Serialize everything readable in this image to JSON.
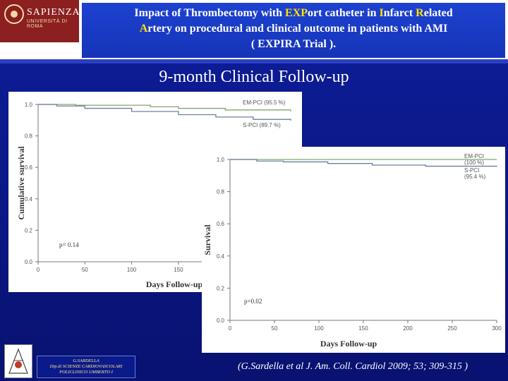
{
  "header": {
    "logo_name": "SAPIENZA",
    "logo_subtitle": "UNIVERSITÀ DI ROMA",
    "title": {
      "part1": "Impact of Thrombectomy with ",
      "exp": "EXP",
      "part2": "ort catheter in ",
      "i": "I",
      "part3": "nfarct ",
      "r": "R",
      "part4": "elated",
      "part5a": "",
      "a": "A",
      "part5": "rtery on procedural and clinical outcome in patients with AMI",
      "part6": "( EXPIRA Trial )."
    }
  },
  "subtitle": "9-month Clinical Follow-up",
  "footer": {
    "line1": "G.SARDELLA",
    "line2": "Dip.di SCIENZE CARDIOVASCOLARI",
    "line3": "POLICLINICO UMBERTO I"
  },
  "citation": "(G.Sardella et al J. Am. Coll. Cardiol 2009; 53; 309-315 )",
  "colors": {
    "em_pci": "#7fa86a",
    "s_pci": "#6e7fa0",
    "highlight": "#ffe100"
  },
  "chart_data": [
    {
      "type": "line",
      "xlabel": "Days Follow-up",
      "ylabel": "Cumulative survival",
      "x_ticks": [
        "0",
        "50",
        "100",
        "150"
      ],
      "y_ticks": [
        "0.0",
        "0.2",
        "0.4",
        "0.6",
        "0.8",
        "1.0"
      ],
      "xlim": [
        0,
        270
      ],
      "ylim": [
        0,
        1.0
      ],
      "annotation": "p= 0.14",
      "series": [
        {
          "name": "EM-PCI (95.5 %)",
          "x": [
            0,
            40,
            120,
            150,
            200,
            270
          ],
          "y": [
            1.0,
            0.995,
            0.985,
            0.975,
            0.965,
            0.955
          ]
        },
        {
          "name": "S-PCI (89.7 %)",
          "x": [
            0,
            20,
            50,
            100,
            150,
            190,
            230,
            270
          ],
          "y": [
            1.0,
            0.99,
            0.975,
            0.955,
            0.935,
            0.92,
            0.905,
            0.897
          ]
        }
      ]
    },
    {
      "type": "line",
      "xlabel": "Days Follow-up",
      "ylabel": "Survival",
      "x_ticks": [
        "0",
        "50",
        "100",
        "150",
        "200",
        "250",
        "300"
      ],
      "y_ticks": [
        "0.0",
        "0.2",
        "0.4",
        "0.6",
        "0.8",
        "1.0"
      ],
      "xlim": [
        0,
        300
      ],
      "ylim": [
        0,
        1.0
      ],
      "annotation": "p=0.02",
      "series": [
        {
          "name": "EM-PCI",
          "value_label": "(100 %)",
          "x": [
            0,
            300
          ],
          "y": [
            1.0,
            1.0
          ]
        },
        {
          "name": "S-PCI",
          "value_label": "(95.4 %)",
          "x": [
            0,
            30,
            60,
            110,
            160,
            220,
            300
          ],
          "y": [
            1.0,
            0.99,
            0.985,
            0.975,
            0.965,
            0.958,
            0.954
          ]
        }
      ]
    }
  ]
}
